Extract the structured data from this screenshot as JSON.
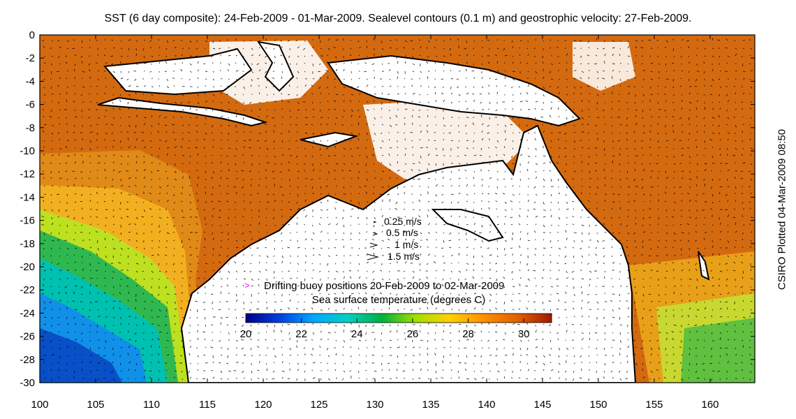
{
  "title": "SST (6 day composite): 24-Feb-2009 - 01-Mar-2009. Sealevel contours (0.1 m) and geostrophic velocity: 27-Feb-2009.",
  "credit": "CSIRO Plotted 04-Mar-2009 08:50",
  "axes": {
    "x_ticks": [
      "100",
      "105",
      "110",
      "115",
      "120",
      "125",
      "130",
      "135",
      "140",
      "145",
      "150",
      "155",
      "160"
    ],
    "y_ticks": [
      "0",
      "-2",
      "-4",
      "-6",
      "-8",
      "-10",
      "-12",
      "-14",
      "-16",
      "-18",
      "-20",
      "-22",
      "-24",
      "-26",
      "-28",
      "-30"
    ],
    "lon_range": [
      100,
      164
    ],
    "lat_range": [
      -30,
      0
    ]
  },
  "velocity_legend": [
    {
      "label": "0.25 m/s",
      "speed": 0.25
    },
    {
      "label": "0.5 m/s",
      "speed": 0.5
    },
    {
      "label": "1 m/s",
      "speed": 1
    },
    {
      "label": "1.5 m/s",
      "speed": 1.5
    }
  ],
  "buoy_legend": {
    "marker": ">",
    "label": "Drifting buoy positions 20-Feb-2009 to 02-Mar-2009",
    "color": "#ff00ff"
  },
  "colorbar": {
    "title": "Sea surface temperature (degrees C)",
    "ticks": [
      "20",
      "22",
      "24",
      "26",
      "28",
      "30"
    ],
    "range": [
      20,
      31
    ],
    "colors": [
      "#00008b",
      "#0040e0",
      "#00a8ff",
      "#00d0c0",
      "#00b040",
      "#a0e000",
      "#ffd000",
      "#ff9000",
      "#e06000",
      "#a01800"
    ]
  }
}
